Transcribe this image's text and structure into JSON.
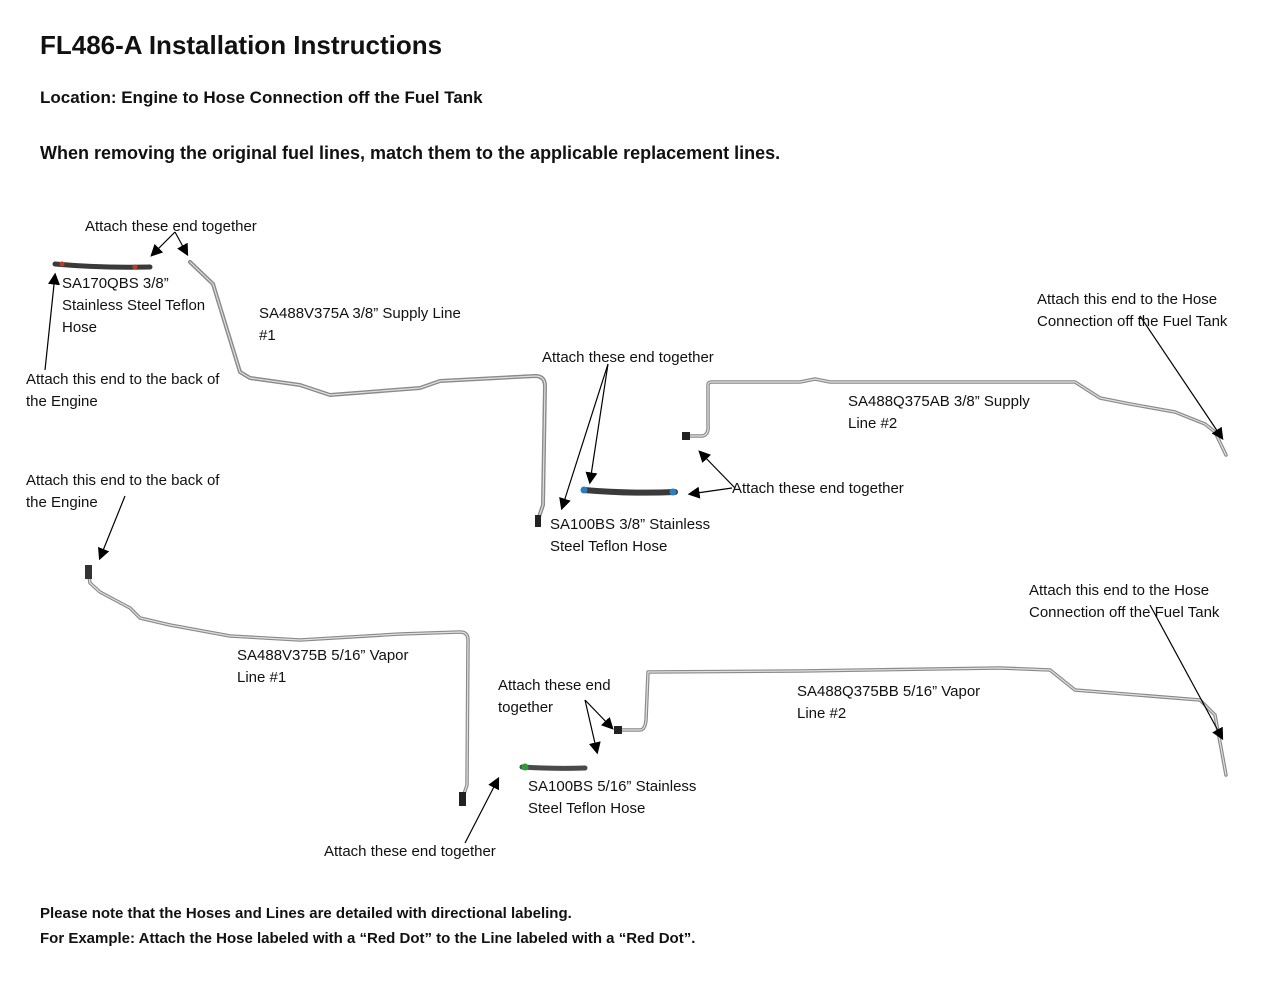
{
  "title": "FL486-A Installation Instructions",
  "location": "Location: Engine to Hose Connection off the Fuel Tank",
  "instruction": "When removing the original fuel lines, match them to the applicable replacement lines.",
  "labels": {
    "attach_together_1": "Attach these end together",
    "hose_sa170qbs": "SA170QBS 3/8”\nStainless Steel Teflon\nHose",
    "line_sa488v375a": "SA488V375A 3/8” Supply Line\n#1",
    "engine_1": "Attach this end to the back of\nthe Engine",
    "attach_together_2": "Attach these end together",
    "line_sa488q375ab": "SA488Q375AB 3/8” Supply\nLine #2",
    "tank_1": "Attach this end to the Hose\nConnection off the Fuel Tank",
    "attach_together_3": "Attach these end together",
    "hose_sa100bs_38": "SA100BS 3/8” Stainless\nSteel Teflon Hose",
    "engine_2": "Attach this end to the back of\nthe Engine",
    "line_sa488v375b": "SA488V375B 5/16” Vapor\nLine #1",
    "attach_together_4": "Attach these end\ntogether",
    "hose_sa100bs_516": "SA100BS 5/16” Stainless\nSteel Teflon Hose",
    "line_sa488q375bb": "SA488Q375BB 5/16” Vapor\nLine #2",
    "tank_2": "Attach this end to the Hose\nConnection off the Fuel Tank",
    "attach_together_5": "Attach these end together"
  },
  "footer": {
    "line1": "Please note that the Hoses and Lines are detailed with directional labeling.",
    "line2": "For Example: Attach the Hose labeled with a “Red Dot” to the Line labeled with a “Red Dot”."
  },
  "colors": {
    "tube": "#a8a8a8",
    "hose": "#3a3a3a",
    "red_dot": "#c0392b",
    "blue_dot": "#2a7fc0",
    "green_dot": "#2e9a3a"
  }
}
